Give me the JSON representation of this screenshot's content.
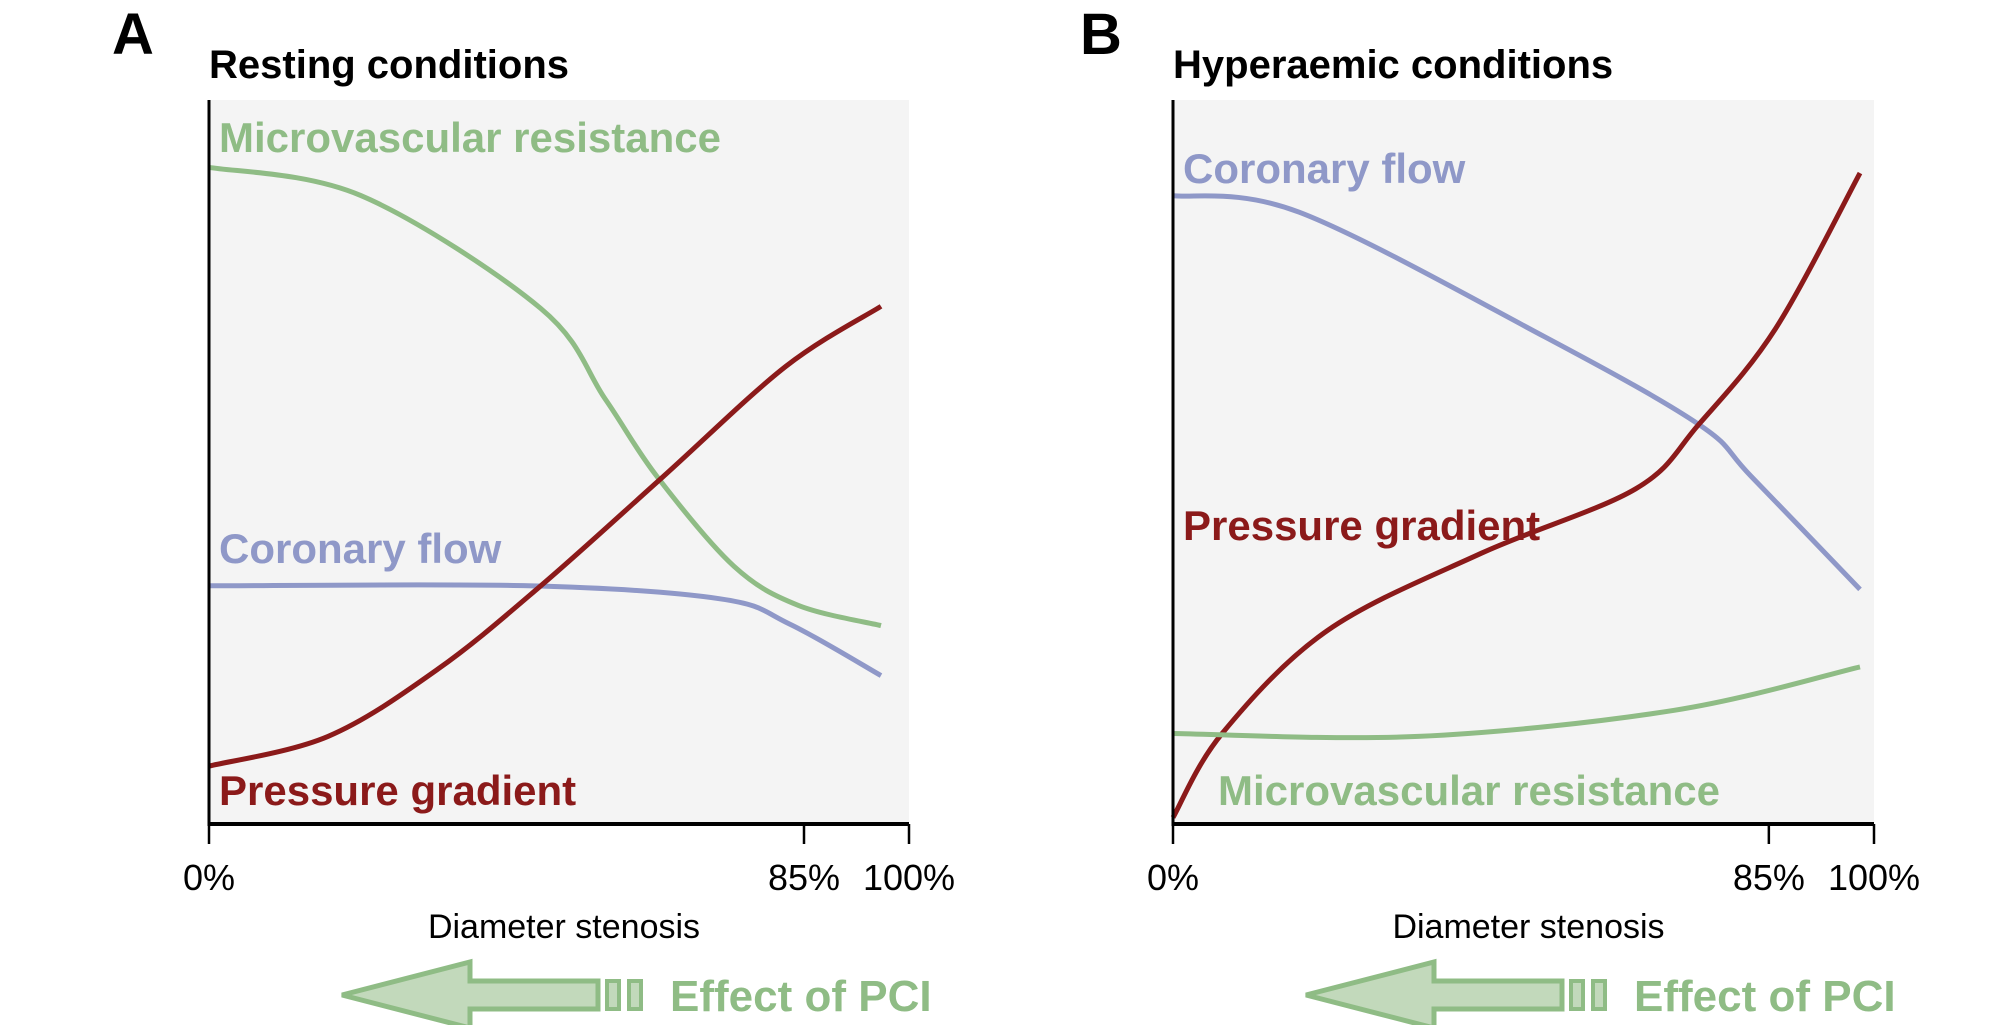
{
  "chart_data": [
    {
      "type": "line",
      "panel_letter": "A",
      "title": "Resting conditions",
      "xlabel": "Diameter stenosis",
      "ylabel": "",
      "x_ticks": [
        "0%",
        "85%",
        "100%"
      ],
      "x_tick_values": [
        0,
        85,
        100
      ],
      "xlim": [
        0,
        100
      ],
      "ylim": [
        0,
        1
      ],
      "y_axis_note": "schematic, relative magnitude (no y ticks shown)",
      "grid": false,
      "background": "#f4f4f4",
      "series": [
        {
          "name": "Microvascular resistance",
          "color": "#8fbc85",
          "x": [
            0,
            21.7,
            47.4,
            56.6,
            64,
            75,
            84.2,
            96
          ],
          "values": [
            0.907,
            0.868,
            0.712,
            0.587,
            0.48,
            0.356,
            0.302,
            0.274
          ],
          "label_position": "top-left"
        },
        {
          "name": "Coronary flow",
          "color": "#8f98c8",
          "x": [
            0,
            45.6,
            73,
            83,
            96
          ],
          "values": [
            0.329,
            0.329,
            0.311,
            0.276,
            0.205
          ],
          "label_position": "middle-left"
        },
        {
          "name": "Pressure gradient",
          "color": "#8b1a1a",
          "x": [
            0,
            17,
            32.7,
            47.4,
            64.9,
            82.4,
            96
          ],
          "values": [
            0.08,
            0.121,
            0.214,
            0.329,
            0.48,
            0.632,
            0.715
          ],
          "label_position": "bottom-left"
        }
      ],
      "annotation": {
        "text": "Effect of PCI",
        "direction": "left",
        "color": "#8fbc85"
      }
    },
    {
      "type": "line",
      "panel_letter": "B",
      "title": "Hyperaemic conditions",
      "xlabel": "Diameter stenosis",
      "ylabel": "",
      "x_ticks": [
        "0%",
        "85%",
        "100%"
      ],
      "x_tick_values": [
        0,
        85,
        100
      ],
      "xlim": [
        0,
        100
      ],
      "ylim": [
        0,
        1
      ],
      "y_axis_note": "schematic, relative magnitude (no y ticks shown)",
      "grid": false,
      "background": "#f4f4f4",
      "series": [
        {
          "name": "Coronary flow",
          "color": "#8f98c8",
          "x": [
            0,
            18,
            53,
            75,
            82.5,
            98
          ],
          "values": [
            0.868,
            0.845,
            0.673,
            0.552,
            0.48,
            0.324
          ],
          "label_position": "top-left"
        },
        {
          "name": "Pressure gradient",
          "color": "#8b1a1a",
          "x": [
            0,
            7,
            22,
            44,
            66,
            75,
            86,
            98
          ],
          "values": [
            0.009,
            0.125,
            0.267,
            0.374,
            0.463,
            0.552,
            0.685,
            0.899
          ],
          "label_position": "middle-left"
        },
        {
          "name": "Microvascular resistance",
          "color": "#8fbc85",
          "x": [
            0,
            35,
            71.5,
            98
          ],
          "values": [
            0.125,
            0.121,
            0.157,
            0.217
          ],
          "label_position": "bottom-left"
        }
      ],
      "annotation": {
        "text": "Effect of PCI",
        "direction": "left",
        "color": "#8fbc85"
      }
    }
  ]
}
